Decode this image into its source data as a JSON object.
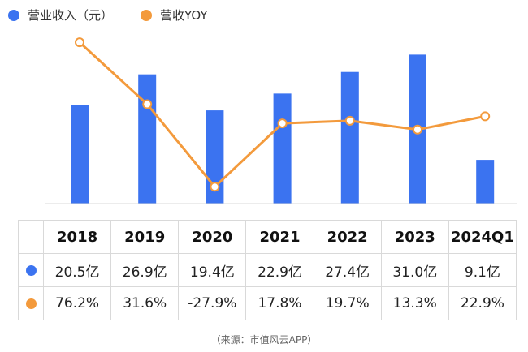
{
  "legend": [
    {
      "label": "营业收入（元）",
      "color": "#3b73f0"
    },
    {
      "label": "营收YOY",
      "color": "#f39a3c"
    }
  ],
  "chart_data": {
    "type": "bar+line",
    "categories": [
      "2018",
      "2019",
      "2020",
      "2021",
      "2022",
      "2023",
      "2024Q1"
    ],
    "series": [
      {
        "name": "营业收入（元）",
        "type": "bar",
        "values": [
          20.5,
          26.9,
          19.4,
          22.9,
          27.4,
          31.0,
          9.1
        ],
        "unit": "亿",
        "color": "#3b73f0"
      },
      {
        "name": "营收YOY",
        "type": "line",
        "values": [
          76.2,
          31.6,
          -27.9,
          17.8,
          19.7,
          13.3,
          22.9
        ],
        "unit": "%",
        "color": "#f39a3c"
      }
    ],
    "bar_ylim": [
      0,
      39
    ],
    "line_ylim": [
      -40,
      95
    ],
    "grid": false
  },
  "table": {
    "years": [
      "2018",
      "2019",
      "2020",
      "2021",
      "2022",
      "2023",
      "2024Q1"
    ],
    "revenue_labels": [
      "20.5亿",
      "26.9亿",
      "19.4亿",
      "22.9亿",
      "27.4亿",
      "31.0亿",
      "9.1亿"
    ],
    "yoy_labels": [
      "76.2%",
      "31.6%",
      "-27.9%",
      "17.8%",
      "19.7%",
      "13.3%",
      "22.9%"
    ]
  },
  "source": "（来源：市值风云APP）"
}
